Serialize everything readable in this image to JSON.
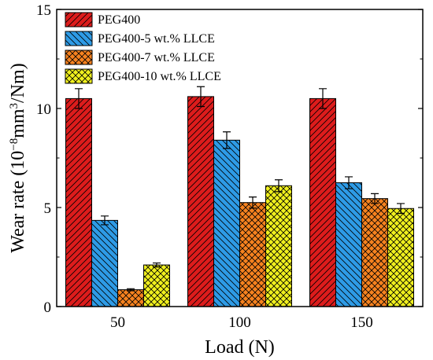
{
  "chart_data": {
    "type": "bar",
    "categories": [
      "50",
      "100",
      "150"
    ],
    "series": [
      {
        "name": "PEG400",
        "values": [
          10.5,
          10.6,
          10.5
        ],
        "errors": [
          0.5,
          0.5,
          0.5
        ],
        "color": "#dd1c1c",
        "pattern": "hatch-right"
      },
      {
        "name": "PEG400-5 wt.% LLCE",
        "values": [
          4.35,
          8.4,
          6.25
        ],
        "errors": [
          0.22,
          0.42,
          0.3
        ],
        "color": "#2e9be6",
        "pattern": "hatch-left"
      },
      {
        "name": "PEG400-7 wt.% LLCE",
        "values": [
          0.85,
          5.25,
          5.45
        ],
        "errors": [
          0.05,
          0.28,
          0.25
        ],
        "color": "#f6821f",
        "pattern": "crosshatch"
      },
      {
        "name": "PEG400-10 wt.% LLCE",
        "values": [
          2.1,
          6.1,
          4.95
        ],
        "errors": [
          0.1,
          0.3,
          0.25
        ],
        "color": "#f0f01e",
        "pattern": "crosshatch"
      }
    ],
    "xlabel": "Load (N)",
    "ylabel_parts": {
      "pre": "Wear rate (10",
      "sup1": "−8",
      "mid": "mm",
      "sup2": "3",
      "post": "/Nm)"
    },
    "yticks": [
      "0",
      "5",
      "10",
      "15"
    ],
    "ylim": [
      0,
      15
    ],
    "grid": false,
    "legend_position": "top-left"
  }
}
